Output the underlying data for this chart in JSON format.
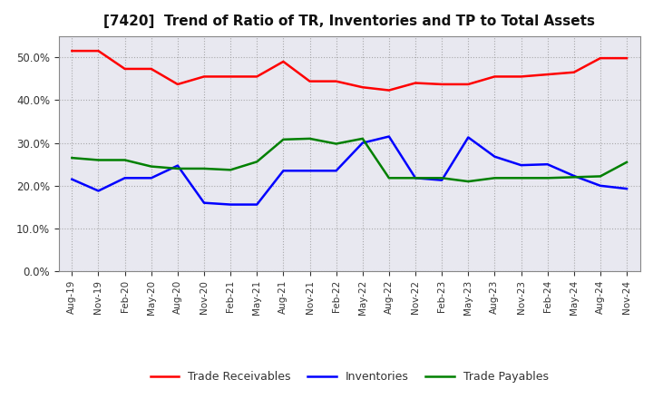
{
  "title": "[7420]  Trend of Ratio of TR, Inventories and TP to Total Assets",
  "x_labels": [
    "Aug-19",
    "Nov-19",
    "Feb-20",
    "May-20",
    "Aug-20",
    "Nov-20",
    "Feb-21",
    "May-21",
    "Aug-21",
    "Nov-21",
    "Feb-22",
    "May-22",
    "Aug-22",
    "Nov-22",
    "Feb-23",
    "May-23",
    "Aug-23",
    "Nov-23",
    "Feb-24",
    "May-24",
    "Aug-24",
    "Nov-24"
  ],
  "trade_receivables": [
    0.515,
    0.515,
    0.473,
    0.473,
    0.437,
    0.455,
    0.455,
    0.455,
    0.49,
    0.444,
    0.444,
    0.43,
    0.423,
    0.44,
    0.437,
    0.437,
    0.455,
    0.455,
    0.46,
    0.465,
    0.498,
    0.498
  ],
  "inventories": [
    0.215,
    0.188,
    0.218,
    0.218,
    0.247,
    0.16,
    0.156,
    0.156,
    0.235,
    0.235,
    0.235,
    0.3,
    0.315,
    0.218,
    0.213,
    0.313,
    0.268,
    0.248,
    0.25,
    0.223,
    0.2,
    0.193
  ],
  "trade_payables": [
    0.265,
    0.26,
    0.26,
    0.245,
    0.24,
    0.24,
    0.237,
    0.256,
    0.308,
    0.31,
    0.298,
    0.31,
    0.218,
    0.218,
    0.218,
    0.21,
    0.218,
    0.218,
    0.218,
    0.22,
    0.222,
    0.255
  ],
  "line_color_tr": "#FF0000",
  "line_color_inv": "#0000FF",
  "line_color_tp": "#008000",
  "background_color": "#FFFFFF",
  "plot_bg_color": "#E8E8F0",
  "grid_color": "#999999",
  "ylim": [
    0.0,
    0.55
  ],
  "yticks": [
    0.0,
    0.1,
    0.2,
    0.3,
    0.4,
    0.5
  ],
  "legend_labels": [
    "Trade Receivables",
    "Inventories",
    "Trade Payables"
  ]
}
